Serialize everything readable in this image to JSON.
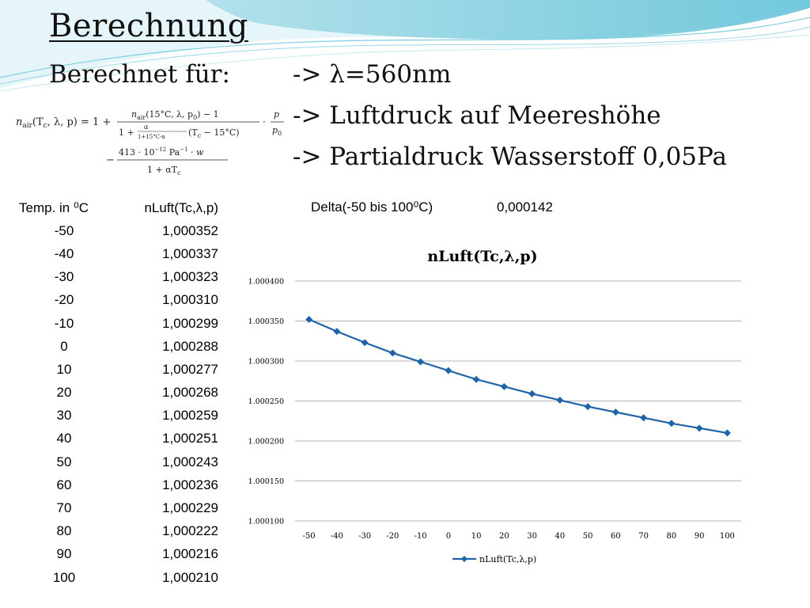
{
  "slide": {
    "title": "Berechnung",
    "subtitle": "Berechnet für:",
    "bullets": [
      "-> λ=560nm",
      "-> Luftdruck auf Meereshöhe",
      "-> Partialdruck Wasserstoff 0,05Pa"
    ],
    "formula": {
      "lhs": "n",
      "lhs_sub": "air",
      "lhs_args": "(T",
      "lhs_args_sub": "c",
      "lhs_args_rest": ", λ, p) = 1 +",
      "num1": "n",
      "num1_sub": "air",
      "num1_rest": "(15°C, λ, p",
      "num1_p0": "0",
      "num1_end": ") − 1",
      "den1_a": "1 +",
      "den1_frac_num": "α",
      "den1_frac_den": "1+15°C·α",
      "den1_b": "(T",
      "den1_b_sub": "c",
      "den1_b_end": " − 15°C)",
      "dot": "·",
      "p_num": "p",
      "p_den": "p",
      "p_den_sub": "0",
      "minus": "−",
      "num2": "413 · 10",
      "num2_exp": "−12",
      "num2_rest": " Pa",
      "num2_exp2": "−1",
      "num2_end": " · w",
      "den2": "1 + αT",
      "den2_sub": "c"
    }
  },
  "table": {
    "headers": [
      "Temp. in ⁰C",
      "nLuft(Tc,λ,p)"
    ],
    "rows": [
      [
        "-50",
        "1,000352"
      ],
      [
        "-40",
        "1,000337"
      ],
      [
        "-30",
        "1,000323"
      ],
      [
        "-20",
        "1,000310"
      ],
      [
        "-10",
        "1,000299"
      ],
      [
        "0",
        "1,000288"
      ],
      [
        "10",
        "1,000277"
      ],
      [
        "20",
        "1,000268"
      ],
      [
        "30",
        "1,000259"
      ],
      [
        "40",
        "1,000251"
      ],
      [
        "50",
        "1,000243"
      ],
      [
        "60",
        "1,000236"
      ],
      [
        "70",
        "1,000229"
      ],
      [
        "80",
        "1,000222"
      ],
      [
        "90",
        "1,000216"
      ],
      [
        "100",
        "1,000210"
      ]
    ]
  },
  "delta": {
    "label": "Delta(-50 bis 100⁰C)",
    "value": "0,000142"
  },
  "colors": {
    "series": "#1f63a8",
    "grid": "#b5b5b5"
  },
  "chart_data": {
    "type": "line",
    "title": "nLuft(Tc,λ,p)",
    "xlabel": "",
    "ylabel": "",
    "categories": [
      "-50",
      "-40",
      "-30",
      "-20",
      "-10",
      "0",
      "10",
      "20",
      "30",
      "40",
      "50",
      "60",
      "70",
      "80",
      "90",
      "100"
    ],
    "series": [
      {
        "name": "nLuft(Tc,λ,p)",
        "values": [
          1.000352,
          1.000337,
          1.000323,
          1.00031,
          1.000299,
          1.000288,
          1.000277,
          1.000268,
          1.000259,
          1.000251,
          1.000243,
          1.000236,
          1.000229,
          1.000222,
          1.000216,
          1.00021
        ],
        "marker": "diamond"
      }
    ],
    "ylim": [
      1.0001,
      1.0004
    ],
    "yticks": [
      "1.000100",
      "1.000150",
      "1.000200",
      "1.000250",
      "1.000300",
      "1.000350",
      "1.000400"
    ],
    "ytick_values": [
      1.0001,
      1.00015,
      1.0002,
      1.00025,
      1.0003,
      1.00035,
      1.0004
    ],
    "grid": true,
    "legend": "bottom"
  }
}
